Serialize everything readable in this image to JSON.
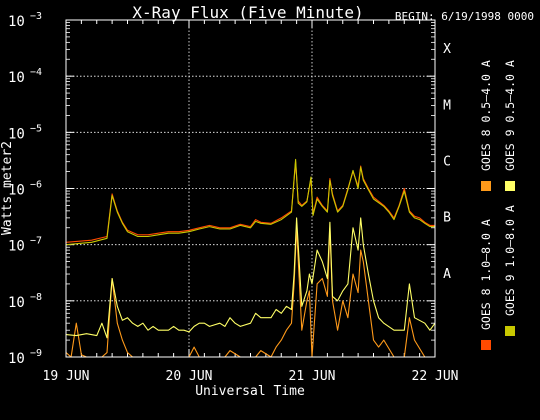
{
  "chart_data": {
    "type": "line",
    "title": "X-Ray Flux (Five Minute)",
    "begin_label": "BEGIN: 6/19/1998 0000",
    "xlabel": "Universal Time",
    "ylabel": "Watts meter2",
    "y_scale": "log",
    "ylim": [
      1e-09,
      0.001
    ],
    "xlim": [
      0,
      72
    ],
    "x_unit": "hours since 19 Jun 1998 00:00 UT",
    "x_ticks": [
      {
        "x": 0,
        "label": "19 JUN"
      },
      {
        "x": 24,
        "label": "20 JUN"
      },
      {
        "x": 48,
        "label": "21 JUN"
      },
      {
        "x": 72,
        "label": "22 JUN"
      }
    ],
    "y_ticks": [
      {
        "exp": -3,
        "label": "10",
        "sup": "−3"
      },
      {
        "exp": -4,
        "label": "10",
        "sup": "−4"
      },
      {
        "exp": -5,
        "label": "10",
        "sup": "−5"
      },
      {
        "exp": -6,
        "label": "10",
        "sup": "−6"
      },
      {
        "exp": -7,
        "label": "10",
        "sup": "−7"
      },
      {
        "exp": -8,
        "label": "10",
        "sup": "−8"
      },
      {
        "exp": -9,
        "label": "10",
        "sup": "−9"
      }
    ],
    "flare_classes": [
      {
        "exp": -4,
        "label": "X"
      },
      {
        "exp": -5,
        "label": "M"
      },
      {
        "exp": -6,
        "label": "C"
      },
      {
        "exp": -7,
        "label": "B"
      },
      {
        "exp": -8,
        "label": "A"
      }
    ],
    "grid": "dotted",
    "legend_position": "right, vertical",
    "series": [
      {
        "name": "GOES 8 1.0–8.0 A",
        "color": "#ff4a00",
        "x": [
          0,
          5,
          8,
          9,
          10,
          11,
          12,
          14,
          16,
          18,
          20,
          22,
          24,
          26,
          28,
          30,
          32,
          34,
          36,
          37,
          38,
          40,
          42,
          44,
          44.8,
          45.3,
          46,
          47,
          47.8,
          48.2,
          49,
          50,
          51,
          51.5,
          52,
          53,
          54,
          55,
          56,
          57,
          57.5,
          58,
          59,
          60,
          62,
          63,
          64,
          65,
          66,
          67,
          68,
          69,
          70,
          71,
          72
        ],
        "y": [
          1.1e-07,
          1.2e-07,
          1.4e-07,
          8e-07,
          4e-07,
          2.5e-07,
          1.8e-07,
          1.5e-07,
          1.5e-07,
          1.6e-07,
          1.7e-07,
          1.7e-07,
          1.8e-07,
          2e-07,
          2.2e-07,
          2e-07,
          2e-07,
          2.3e-07,
          2.1e-07,
          2.8e-07,
          2.5e-07,
          2.4e-07,
          3e-07,
          4e-07,
          3e-06,
          6e-07,
          5e-07,
          6e-07,
          1.5e-06,
          3.5e-07,
          7e-07,
          5e-07,
          4e-07,
          1.5e-06,
          8e-07,
          4e-07,
          5e-07,
          1e-06,
          2e-06,
          1.1e-06,
          2.5e-06,
          1.5e-06,
          1e-06,
          7e-07,
          5e-07,
          4e-07,
          3e-07,
          5e-07,
          1e-06,
          4e-07,
          3.2e-07,
          3e-07,
          2.5e-07,
          2.2e-07,
          2.2e-07
        ]
      },
      {
        "name": "GOES 8 0.5–4.0 A",
        "color": "#ff9a1a",
        "x": [
          0,
          1,
          2,
          3,
          4,
          6,
          7,
          8,
          9,
          10,
          11,
          12,
          13,
          14,
          15,
          16,
          17,
          18,
          20,
          21,
          22,
          24,
          25,
          26,
          28,
          30,
          31,
          32,
          34,
          36,
          37,
          38,
          40,
          41,
          42,
          43,
          44,
          44.5,
          45,
          46,
          47,
          47.5,
          48,
          49,
          50,
          51,
          51.5,
          52,
          53,
          54,
          55,
          56,
          57,
          57.5,
          58,
          59,
          60,
          61,
          62,
          64,
          66,
          67,
          68,
          70,
          72
        ],
        "y": [
          1.2e-09,
          1e-09,
          4e-09,
          1.1e-09,
          1e-09,
          1e-09,
          1e-09,
          1.2e-09,
          2.5e-08,
          4e-09,
          2e-09,
          1.2e-09,
          1e-09,
          1e-09,
          1e-09,
          1e-09,
          1e-09,
          1e-09,
          1e-09,
          1e-09,
          1e-09,
          1e-09,
          1.5e-09,
          1e-09,
          1e-09,
          1e-09,
          1e-09,
          1.3e-09,
          1e-09,
          1e-09,
          1e-09,
          1.3e-09,
          1e-09,
          1.5e-09,
          2e-09,
          3e-09,
          4e-09,
          2e-08,
          2e-07,
          3e-09,
          1e-08,
          1.5e-08,
          1e-09,
          2e-08,
          2.5e-08,
          1.2e-08,
          2e-07,
          1e-08,
          3e-09,
          1e-08,
          5e-09,
          3e-08,
          1.4e-08,
          8e-08,
          5e-08,
          1e-08,
          2e-09,
          1.5e-09,
          2e-09,
          1e-09,
          1e-09,
          5e-09,
          2e-09,
          1e-09,
          1e-09
        ]
      },
      {
        "name": "GOES 9 1.0–8.0 A",
        "color": "#c8c800",
        "x": [
          0,
          5,
          8,
          9,
          10,
          11,
          12,
          14,
          16,
          18,
          20,
          22,
          24,
          26,
          28,
          30,
          32,
          34,
          36,
          37,
          38,
          40,
          42,
          44,
          44.8,
          45.3,
          46,
          47,
          47.8,
          48.2,
          49,
          50,
          51,
          51.5,
          52,
          53,
          54,
          55,
          56,
          57,
          57.5,
          58,
          59,
          60,
          62,
          63,
          64,
          65,
          66,
          67,
          68,
          69,
          70,
          71,
          72
        ],
        "y": [
          1e-07,
          1.1e-07,
          1.3e-07,
          7.5e-07,
          3.8e-07,
          2.4e-07,
          1.7e-07,
          1.4e-07,
          1.4e-07,
          1.5e-07,
          1.6e-07,
          1.6e-07,
          1.7e-07,
          1.9e-07,
          2.1e-07,
          1.9e-07,
          1.9e-07,
          2.2e-07,
          2e-07,
          2.6e-07,
          2.4e-07,
          2.3e-07,
          2.8e-07,
          3.8e-07,
          3.3e-06,
          5.5e-07,
          4.8e-07,
          5.8e-07,
          1.6e-06,
          3.3e-07,
          6.5e-07,
          4.8e-07,
          3.8e-07,
          1.4e-06,
          7.5e-07,
          3.8e-07,
          4.8e-07,
          9.5e-07,
          2.1e-06,
          1e-06,
          2.4e-06,
          1.4e-06,
          9.5e-07,
          6.5e-07,
          4.8e-07,
          3.8e-07,
          2.8e-07,
          4.8e-07,
          9e-07,
          3.8e-07,
          3e-07,
          2.8e-07,
          2.4e-07,
          2.1e-07,
          2.1e-07
        ]
      },
      {
        "name": "GOES 9 0.5–4.0 A",
        "color": "#ffff66",
        "x": [
          0,
          2,
          4,
          6,
          7,
          8,
          9,
          10,
          11,
          12,
          13,
          14,
          15,
          16,
          17,
          18,
          20,
          21,
          22,
          23,
          24,
          25,
          26,
          27,
          28,
          30,
          31,
          32,
          33,
          34,
          36,
          37,
          38,
          40,
          41,
          42,
          43,
          44,
          44.5,
          45,
          46,
          47,
          47.5,
          48,
          49,
          50,
          51,
          51.5,
          52,
          53,
          54,
          55,
          56,
          57,
          57.5,
          58,
          59,
          60,
          61,
          62,
          64,
          66,
          67,
          68,
          70,
          71,
          72
        ],
        "y": [
          2.5e-09,
          2.4e-09,
          2.6e-09,
          2.4e-09,
          4e-09,
          2.2e-09,
          2.5e-08,
          8e-09,
          4.5e-09,
          5e-09,
          4e-09,
          3.5e-09,
          4e-09,
          3e-09,
          3.5e-09,
          3e-09,
          3e-09,
          3.5e-09,
          3e-09,
          3e-09,
          2.8e-09,
          3.5e-09,
          4e-09,
          4e-09,
          3.5e-09,
          4e-09,
          3.5e-09,
          5e-09,
          4e-09,
          3.5e-09,
          4e-09,
          6e-09,
          5e-09,
          5e-09,
          7e-09,
          6e-09,
          8e-09,
          7e-09,
          3e-08,
          3e-07,
          8e-09,
          1.5e-08,
          3e-08,
          2e-08,
          8e-08,
          5e-08,
          2.5e-08,
          2.5e-07,
          1.2e-08,
          1e-08,
          1.5e-08,
          2e-08,
          2e-07,
          8e-08,
          3e-07,
          1e-07,
          3e-08,
          1e-08,
          5e-09,
          4e-09,
          3e-09,
          3e-09,
          2e-08,
          5e-09,
          4e-09,
          3e-09,
          4e-09
        ]
      }
    ]
  }
}
